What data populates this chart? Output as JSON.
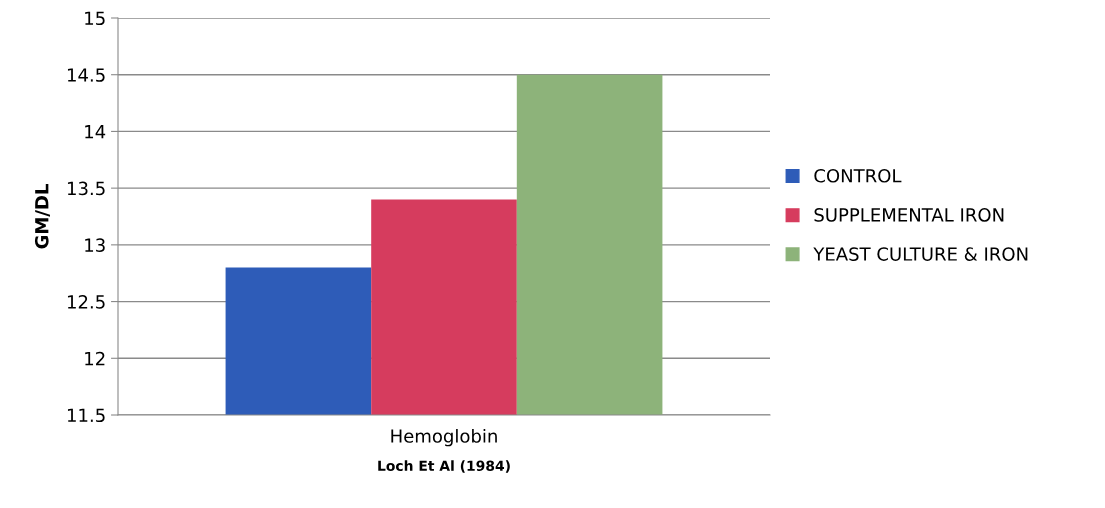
{
  "chart_data": {
    "type": "bar",
    "xlabel": "Loch Et Al (1984)",
    "ylabel": "GM/DL",
    "categories": [
      "Hemoglobin"
    ],
    "series": [
      {
        "name": "CONTROL",
        "color": "#2e5cb8",
        "values": [
          12.8
        ]
      },
      {
        "name": "SUPPLEMENTAL IRON",
        "color": "#d63c5e",
        "values": [
          13.4
        ]
      },
      {
        "name": "YEAST CULTURE & IRON",
        "color": "#8db37a",
        "values": [
          14.5
        ]
      }
    ],
    "ylim": [
      11.5,
      15
    ],
    "yticks": [
      11.5,
      12,
      12.5,
      13,
      13.5,
      14,
      14.5,
      15
    ],
    "grid": "y",
    "legend": "right"
  }
}
